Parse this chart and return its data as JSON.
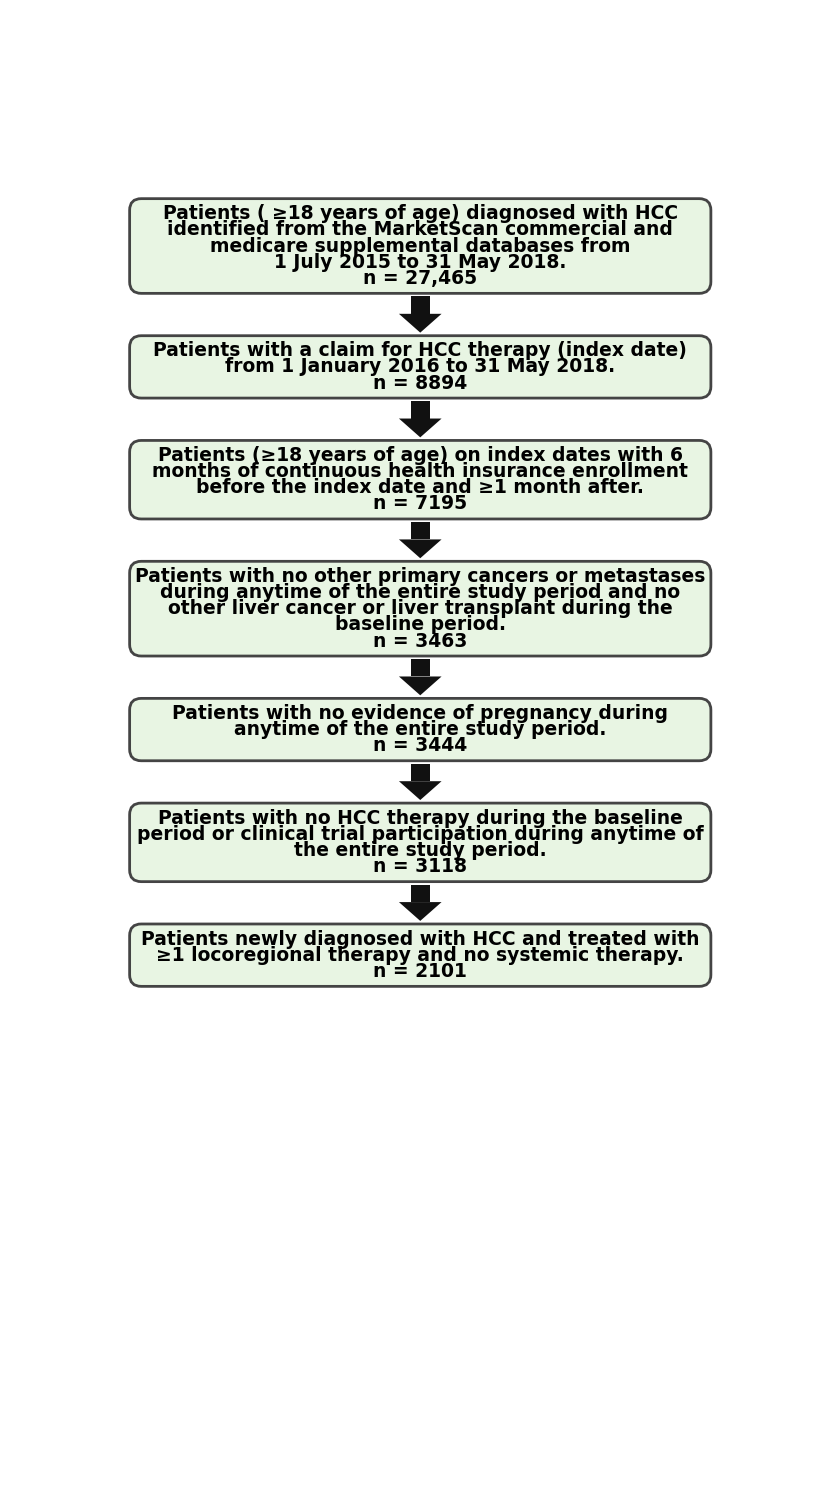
{
  "boxes": [
    {
      "id": 0,
      "lines": [
        "Patients ( ≥18 years of age) diagnosed with HCC",
        "identified from the MarketScan commercial and",
        "medicare supplemental databases from",
        "1 July 2015 to 31 May 2018.",
        "n = 27,465"
      ],
      "n_line": 4
    },
    {
      "id": 1,
      "lines": [
        "Patients with a claim for HCC therapy (index date)",
        "from 1 January 2016 to 31 May 2018.",
        "n = 8894"
      ],
      "n_line": 2
    },
    {
      "id": 2,
      "lines": [
        "Patients (≥18 years of age) on index dates with 6",
        "months of continuous health insurance enrollment",
        "before the index date and ≥1 month after.",
        "n = 7195"
      ],
      "n_line": 3
    },
    {
      "id": 3,
      "lines": [
        "Patients with no other primary cancers or metastases",
        "during anytime of the entire study period and no",
        "other liver cancer or liver transplant during the",
        "baseline period.",
        "n = 3463"
      ],
      "n_line": 4
    },
    {
      "id": 4,
      "lines": [
        "Patients with no evidence of pregnancy during",
        "anytime of the entire study period.",
        "n = 3444"
      ],
      "n_line": 2
    },
    {
      "id": 5,
      "lines": [
        "Patients with no HCC therapy during the baseline",
        "period or clinical trial participation during anytime of",
        "the entire study period.",
        "n = 3118"
      ],
      "n_line": 3
    },
    {
      "id": 6,
      "lines": [
        "Patients newly diagnosed with HCC and treated with",
        "≥1 locoregional therapy and no systemic therapy.",
        "n = 2101"
      ],
      "n_line": 2
    }
  ],
  "box_fill": "#e8f5e3",
  "box_edge": "#444444",
  "arrow_color": "#111111",
  "text_color": "#000000",
  "font_size": 13.5,
  "background_color": "#ffffff",
  "fig_width": 8.2,
  "fig_height": 14.95,
  "dpi": 100
}
